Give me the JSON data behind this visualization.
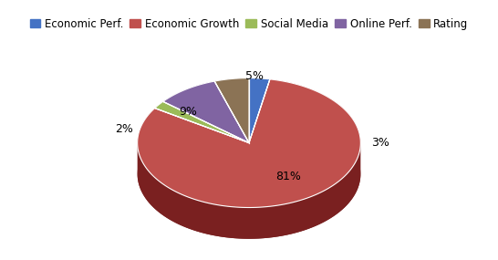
{
  "labels": [
    "Economic Perf.",
    "Economic Growth",
    "Social Media",
    "Online Perf.",
    "Rating"
  ],
  "values": [
    3,
    81,
    2,
    9,
    5
  ],
  "colors": [
    "#4472C4",
    "#C0504D",
    "#9BBB59",
    "#8064A2",
    "#8B7355"
  ],
  "dark_colors": [
    "#2A4A8A",
    "#7A2020",
    "#5A7030",
    "#4A3A6A",
    "#5A4A25"
  ],
  "pct_labels": [
    "3%",
    "81%",
    "2%",
    "9%",
    "5%"
  ],
  "background_color": "#FFFFFF",
  "legend_fontsize": 8.5,
  "pct_fontsize": 9,
  "startangle": 90,
  "yscale": 0.58,
  "depth": 0.28,
  "xlim": [
    -1.4,
    1.4
  ],
  "ylim": [
    -1.05,
    1.0
  ]
}
